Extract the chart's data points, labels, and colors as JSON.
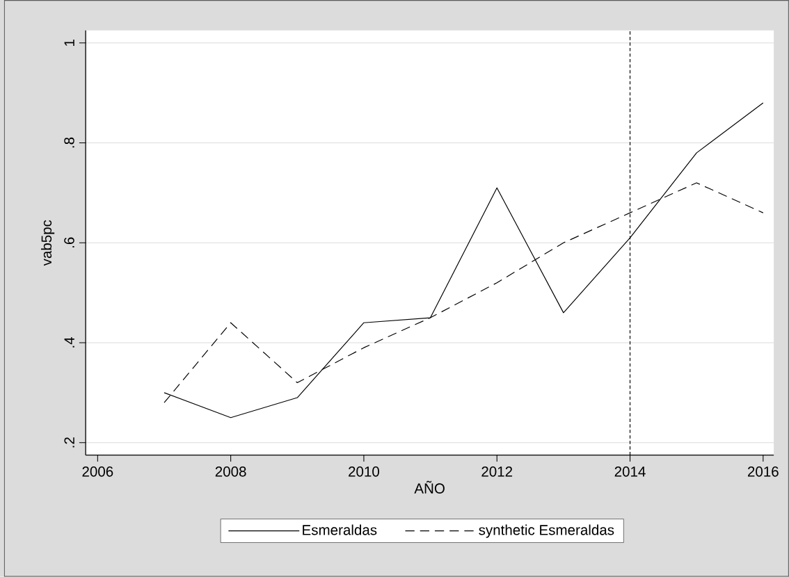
{
  "chart_data": {
    "type": "line",
    "xlabel": "AÑO",
    "ylabel": "vab5pc",
    "x": [
      2007,
      2008,
      2009,
      2010,
      2011,
      2012,
      2013,
      2014,
      2015,
      2016
    ],
    "series": [
      {
        "name": "Esmeraldas",
        "color": "#000000",
        "line_style": "solid",
        "values": [
          0.3,
          0.25,
          0.29,
          0.44,
          0.45,
          0.71,
          0.46,
          0.61,
          0.78,
          0.88
        ]
      },
      {
        "name": "synthetic Esmeraldas",
        "color": "#000000",
        "line_style": "dashed",
        "values": [
          0.28,
          0.44,
          0.32,
          0.39,
          0.45,
          0.52,
          0.6,
          0.66,
          0.72,
          0.66
        ]
      }
    ],
    "xlim": [
      2005.82,
      2016.16
    ],
    "ylim": [
      0.175,
      1.025
    ],
    "xticks": [
      2006,
      2008,
      2010,
      2012,
      2014,
      2016
    ],
    "yticks": [
      {
        "value": 0.2,
        "label": ".2"
      },
      {
        "value": 0.4,
        "label": ".4"
      },
      {
        "value": 0.6,
        "label": ".6"
      },
      {
        "value": 0.8,
        "label": ".8"
      },
      {
        "value": 1,
        "label": "1"
      }
    ],
    "grid": "y",
    "legend": "bottom",
    "ref_lines": [
      {
        "axis": "x",
        "value": 2014,
        "line_style": "dashed",
        "color": "#000000"
      }
    ]
  }
}
